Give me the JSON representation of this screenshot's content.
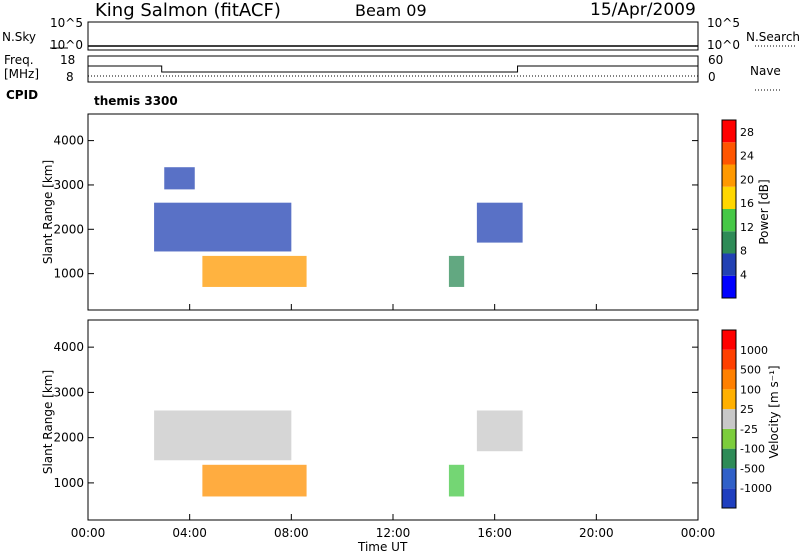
{
  "header": {
    "title": "King Salmon (fitACF)",
    "beam": "Beam 09",
    "date": "15/Apr/2009"
  },
  "top_panels": {
    "nsky_label": "N.Sky",
    "nsearch_label": "N.Search",
    "noise_ticks_left": [
      "10^5",
      "10^0"
    ],
    "noise_ticks_right": [
      "10^5",
      "10^0"
    ],
    "freq_label": "Freq.",
    "freq_unit": "[MHz]",
    "freq_ticks": [
      "18",
      "8"
    ],
    "nave_label": "Nave",
    "nave_ticks": [
      "60",
      "0"
    ],
    "cpid_label": "CPID",
    "cpid_value": "themis 3300"
  },
  "chart_data": [
    {
      "type": "heatmap",
      "title": "Power",
      "ylabel": "Slant Range [km]",
      "xlabel": "",
      "x_ticks": [
        "00:00",
        "04:00",
        "08:00",
        "12:00",
        "16:00",
        "20:00",
        "00:00"
      ],
      "x_range_hours": [
        0,
        24
      ],
      "y_ticks": [
        1000,
        2000,
        3000,
        4000
      ],
      "y_range_km": [
        180,
        4600
      ],
      "colorbar": {
        "label": "Power [dB]",
        "ticks": [
          4,
          8,
          12,
          16,
          20,
          24,
          28
        ],
        "range": [
          0,
          30
        ],
        "colors": [
          "#0000ff",
          "#2241b3",
          "#2e8b57",
          "#46c846",
          "#ffd700",
          "#ff9900",
          "#ff5500",
          "#ff0000"
        ]
      },
      "echo_regions": [
        {
          "t_start": 2.6,
          "t_end": 8.0,
          "r_start": 1500,
          "r_end": 2600,
          "level": "low"
        },
        {
          "t_start": 4.5,
          "t_end": 8.6,
          "r_start": 700,
          "r_end": 1400,
          "level": "high"
        },
        {
          "t_start": 3.0,
          "t_end": 4.2,
          "r_start": 2900,
          "r_end": 3400,
          "level": "low"
        },
        {
          "t_start": 14.2,
          "t_end": 14.8,
          "r_start": 700,
          "r_end": 1400,
          "level": "mid"
        },
        {
          "t_start": 15.3,
          "t_end": 17.1,
          "r_start": 1700,
          "r_end": 2600,
          "level": "low"
        }
      ]
    },
    {
      "type": "heatmap",
      "title": "Velocity",
      "ylabel": "Slant Range [km]",
      "xlabel": "Time UT",
      "x_ticks": [
        "00:00",
        "04:00",
        "08:00",
        "12:00",
        "16:00",
        "20:00",
        "00:00"
      ],
      "x_range_hours": [
        0,
        24
      ],
      "y_ticks": [
        1000,
        2000,
        3000,
        4000
      ],
      "y_range_km": [
        180,
        4600
      ],
      "colorbar": {
        "label": "Velocity [m s⁻¹]",
        "ticks": [
          1000,
          500,
          100,
          25,
          -25,
          -100,
          -500,
          -1000
        ],
        "colors": [
          "#1f3fbf",
          "#3060c8",
          "#2e8b57",
          "#7ccd3c",
          "#c8c8c8",
          "#ffb000",
          "#ff8000",
          "#ff4000",
          "#ff0000"
        ]
      },
      "echo_regions": [
        {
          "t_start": 2.6,
          "t_end": 8.0,
          "r_start": 1500,
          "r_end": 2600,
          "level": "grey"
        },
        {
          "t_start": 4.5,
          "t_end": 8.6,
          "r_start": 700,
          "r_end": 1400,
          "level": "orange"
        },
        {
          "t_start": 14.2,
          "t_end": 14.8,
          "r_start": 700,
          "r_end": 1400,
          "level": "green"
        },
        {
          "t_start": 15.3,
          "t_end": 17.1,
          "r_start": 1700,
          "r_end": 2600,
          "level": "grey"
        }
      ]
    }
  ]
}
